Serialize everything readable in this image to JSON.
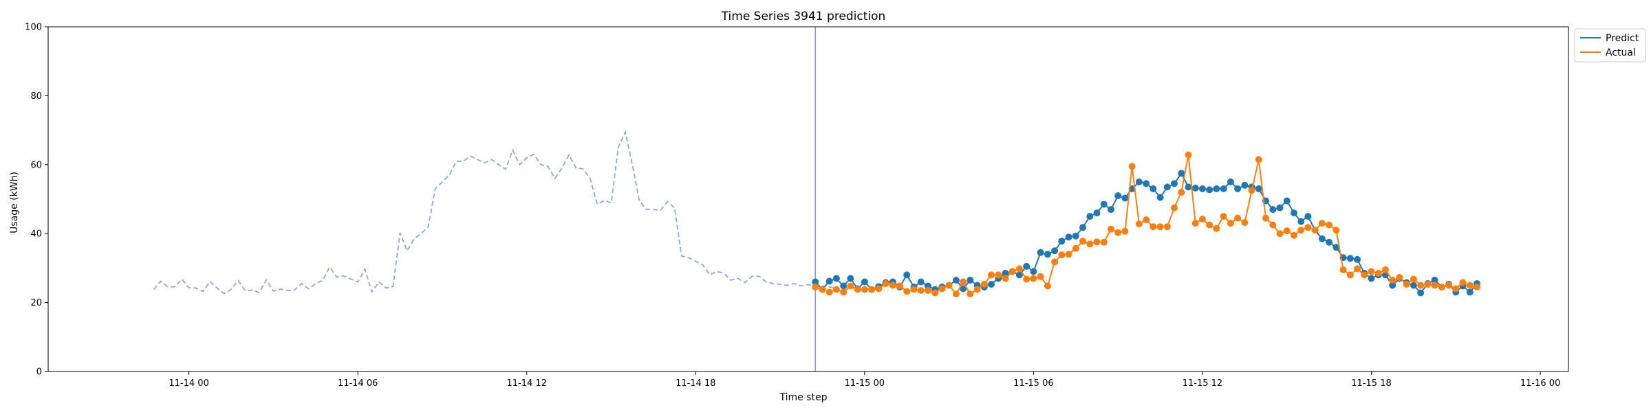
{
  "chart_data": {
    "type": "line",
    "title": "Time Series 3941 prediction",
    "xlabel": "Time step",
    "ylabel": "Usage (kWh)",
    "ylim": [
      0,
      100
    ],
    "xlim": [
      "2023-11-13T19:00",
      "2023-11-16T01:00"
    ],
    "y_ticks": [
      0,
      20,
      40,
      60,
      80,
      100
    ],
    "x_ticks": [
      {
        "value": "2023-11-14T00:00",
        "label": "11-14 00"
      },
      {
        "value": "2023-11-14T06:00",
        "label": "11-14 06"
      },
      {
        "value": "2023-11-14T12:00",
        "label": "11-14 12"
      },
      {
        "value": "2023-11-14T18:00",
        "label": "11-14 18"
      },
      {
        "value": "2023-11-15T00:00",
        "label": "11-15 00"
      },
      {
        "value": "2023-11-15T06:00",
        "label": "11-15 06"
      },
      {
        "value": "2023-11-15T12:00",
        "label": "11-15 12"
      },
      {
        "value": "2023-11-15T18:00",
        "label": "11-15 18"
      },
      {
        "value": "2023-11-16T00:00",
        "label": "11-16 00"
      }
    ],
    "legend_position": "upper-right-outside",
    "split_time": "2023-11-14T22:15",
    "history": {
      "start": "2023-11-13T22:45",
      "step_minutes": 15,
      "color": "#8fa9cc",
      "style": "dashed",
      "values": [
        23.8,
        26.2,
        24.5,
        24.6,
        26.8,
        24.3,
        24.2,
        23.2,
        26.1,
        24.2,
        22.6,
        23.8,
        26.4,
        23.4,
        23.6,
        22.9,
        26.6,
        23.3,
        23.9,
        23.5,
        23.6,
        25.5,
        24.0,
        25.5,
        26.4,
        30.3,
        27.4,
        27.7,
        26.8,
        26.0,
        29.7,
        23.1,
        26.0,
        24.2,
        24.7,
        40.2,
        35.0,
        38.5,
        40.0,
        42.0,
        53.0,
        55.0,
        57.0,
        61.0,
        61.0,
        62.5,
        61.5,
        60.5,
        61.5,
        60.0,
        58.7,
        64.2,
        60.0,
        62.0,
        63.0,
        60.0,
        59.5,
        56.0,
        59.0,
        62.8,
        59.0,
        58.8,
        56.0,
        48.5,
        49.6,
        48.9,
        65.0,
        69.5,
        60.0,
        49.5,
        47.0,
        47.0,
        46.8,
        49.3,
        47.5,
        33.5,
        33.0,
        32.0,
        31.0,
        28.0,
        29.0,
        28.5,
        26.5,
        27.0,
        25.8,
        27.6,
        27.6,
        26.0,
        25.5,
        25.3,
        25.0,
        25.5,
        24.8,
        25.2,
        24.8,
        24.8,
        24.5,
        24.2
      ]
    },
    "series": [
      {
        "name": "Predict",
        "color": "#1f77b4",
        "start": "2023-11-14T22:15",
        "step_minutes": 15,
        "values": [
          26.0,
          23.8,
          26.2,
          27.0,
          24.8,
          27.0,
          24.0,
          26.0,
          23.8,
          24.6,
          25.8,
          26.0,
          24.5,
          28.0,
          24.5,
          26.0,
          24.8,
          23.8,
          24.5,
          25.0,
          26.5,
          24.0,
          26.5,
          25.0,
          24.5,
          25.3,
          27.0,
          28.5,
          29.0,
          28.0,
          30.5,
          29.0,
          34.5,
          34.0,
          35.0,
          37.8,
          39.0,
          39.3,
          41.8,
          45.0,
          46.0,
          48.5,
          47.0,
          51.0,
          50.3,
          53.0,
          55.0,
          54.5,
          53.0,
          50.5,
          53.5,
          54.5,
          57.5,
          53.5,
          53.2,
          53.0,
          52.7,
          53.0,
          53.0,
          55.0,
          53.0,
          54.0,
          53.5,
          53.0,
          49.5,
          47.0,
          47.5,
          49.5,
          46.0,
          43.5,
          45.0,
          41.0,
          38.5,
          37.5,
          36.0,
          33.0,
          32.8,
          32.5,
          28.5,
          27.0,
          28.0,
          28.0,
          25.0,
          27.0,
          25.8,
          25.0,
          22.8,
          25.5,
          26.5,
          24.5,
          25.3,
          23.0,
          24.8,
          23.0,
          25.5
        ]
      },
      {
        "name": "Actual",
        "color": "#ff7f0e",
        "start": "2023-11-14T22:15",
        "step_minutes": 15,
        "values": [
          24.5,
          23.8,
          23.0,
          23.8,
          23.0,
          24.8,
          23.8,
          23.8,
          23.8,
          24.0,
          25.5,
          25.0,
          24.8,
          23.2,
          23.8,
          23.5,
          23.5,
          22.8,
          24.0,
          25.0,
          22.5,
          26.0,
          22.5,
          23.8,
          25.3,
          28.0,
          28.0,
          27.0,
          29.0,
          29.8,
          26.8,
          27.0,
          27.5,
          24.8,
          31.8,
          33.8,
          34.0,
          35.7,
          37.8,
          37.0,
          37.6,
          37.5,
          41.3,
          40.3,
          40.7,
          59.5,
          42.8,
          44.0,
          42.0,
          42.0,
          42.0,
          47.5,
          52.0,
          62.8,
          43.0,
          44.2,
          42.5,
          41.5,
          45.0,
          43.0,
          44.5,
          43.2,
          52.5,
          61.5,
          44.5,
          42.5,
          40.0,
          40.8,
          39.5,
          41.0,
          41.8,
          41.0,
          43.0,
          42.5,
          41.0,
          29.5,
          28.0,
          29.8,
          28.0,
          29.0,
          28.5,
          29.5,
          26.5,
          27.3,
          25.3,
          26.8,
          25.0,
          25.3,
          25.0,
          24.5,
          25.0,
          24.0,
          25.8,
          25.0,
          24.5
        ]
      }
    ]
  }
}
